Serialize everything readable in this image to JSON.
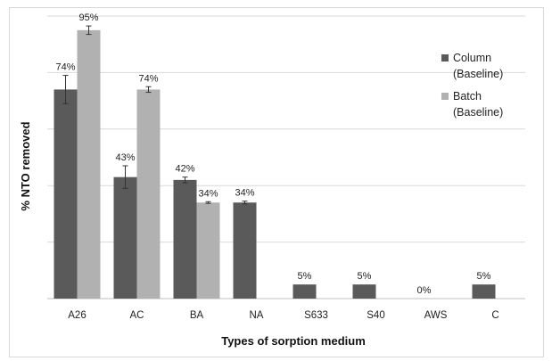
{
  "chart_data": {
    "type": "bar",
    "title": "",
    "xlabel": "Types of sorption medium",
    "ylabel": "% NTO removed",
    "categories": [
      "A26",
      "AC",
      "BA",
      "NA",
      "S633",
      "S40",
      "AWS",
      "C"
    ],
    "ylim": [
      0,
      100
    ],
    "grid": true,
    "legend_position": "top-right",
    "series": [
      {
        "name": "Column (Baseline)",
        "legend_lines": [
          "Column",
          "(Baseline)"
        ],
        "color": "#5a5a5a",
        "values": [
          74,
          43,
          42,
          34,
          5,
          5,
          0,
          5
        ],
        "errors": [
          5,
          4,
          1,
          0.5,
          null,
          null,
          null,
          null
        ],
        "labels": [
          "74%",
          "43%",
          "42%",
          "34%",
          "5%",
          "5%",
          "0%",
          "5%"
        ]
      },
      {
        "name": "Batch (Baseline)",
        "legend_lines": [
          "Batch",
          "(Baseline)"
        ],
        "color": "#b1b1b1",
        "values": [
          95,
          74,
          34,
          null,
          null,
          null,
          null,
          null
        ],
        "errors": [
          1.5,
          1,
          0.3,
          null,
          null,
          null,
          null,
          null
        ],
        "labels": [
          "95%",
          "74%",
          "34%",
          "",
          "",
          "",
          "",
          ""
        ]
      }
    ]
  }
}
